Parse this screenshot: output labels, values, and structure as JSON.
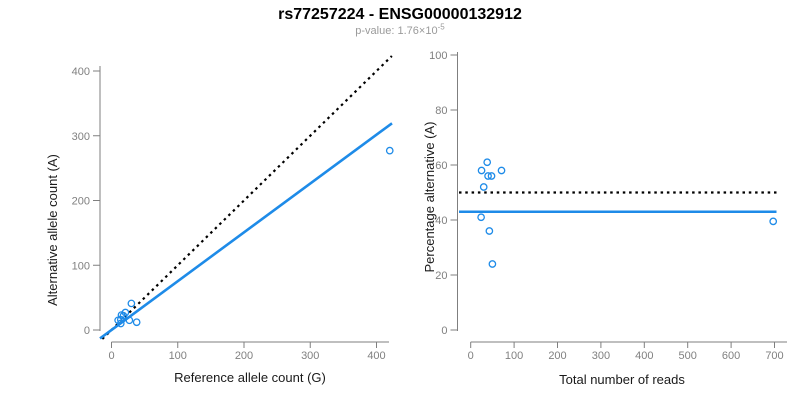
{
  "header": {
    "title": "rs77257224 - ENSG00000132912",
    "pvalue_prefix": "p-value: ",
    "pvalue_mantissa": "1.76",
    "pvalue_times": "×",
    "pvalue_base": "10",
    "pvalue_exponent": "-5"
  },
  "colors": {
    "blue": "#1E8BE8",
    "identity": "#000000",
    "axis": "#7F7F7F",
    "tick_label": "#808080",
    "axis_label": "#1A1A1A",
    "title": "#000000",
    "subtitle": "#9A9A9A"
  },
  "chart_data": [
    {
      "type": "scatter",
      "panel": "left",
      "xlabel": "Reference allele count (G)",
      "ylabel": "Alternative allele count (A)",
      "xlim": [
        0,
        420
      ],
      "ylim": [
        0,
        420
      ],
      "xticks": [
        0,
        100,
        200,
        300,
        400
      ],
      "yticks": [
        0,
        100,
        200,
        300,
        400
      ],
      "grid": false,
      "legend": false,
      "marker": "open-circle",
      "points": [
        [
          10,
          15
        ],
        [
          14,
          16
        ],
        [
          14,
          10
        ],
        [
          15,
          23
        ],
        [
          18,
          22
        ],
        [
          21,
          27
        ],
        [
          27,
          15
        ],
        [
          30,
          41
        ],
        [
          38,
          12
        ],
        [
          420,
          277
        ]
      ],
      "lines": [
        {
          "name": "identity-line",
          "kind": "abline",
          "slope": 1,
          "intercept": 0,
          "style": "dotted",
          "color": "identity"
        },
        {
          "name": "regression-line",
          "kind": "abline",
          "slope": 0.754,
          "intercept": 0,
          "style": "solid",
          "color": "blue"
        }
      ]
    },
    {
      "type": "scatter",
      "panel": "right",
      "xlabel": "Total number of reads",
      "ylabel": "Percentage alternative (A)",
      "xlim": [
        0,
        700
      ],
      "ylim": [
        0,
        100
      ],
      "xticks": [
        0,
        100,
        200,
        300,
        400,
        500,
        600,
        700
      ],
      "yticks": [
        0,
        20,
        40,
        60,
        80,
        100
      ],
      "grid": false,
      "legend": false,
      "marker": "open-circle",
      "points": [
        [
          38,
          61
        ],
        [
          25,
          58
        ],
        [
          71,
          58
        ],
        [
          48,
          56
        ],
        [
          40,
          56
        ],
        [
          30,
          52
        ],
        [
          24,
          41
        ],
        [
          43,
          36
        ],
        [
          50,
          24
        ],
        [
          697,
          39.5
        ]
      ],
      "lines": [
        {
          "name": "expected-50pct-line",
          "kind": "hline",
          "y": 50,
          "style": "dotted",
          "color": "identity"
        },
        {
          "name": "mean-percentage-line",
          "kind": "hline",
          "y": 43,
          "style": "solid",
          "color": "blue"
        }
      ]
    }
  ]
}
